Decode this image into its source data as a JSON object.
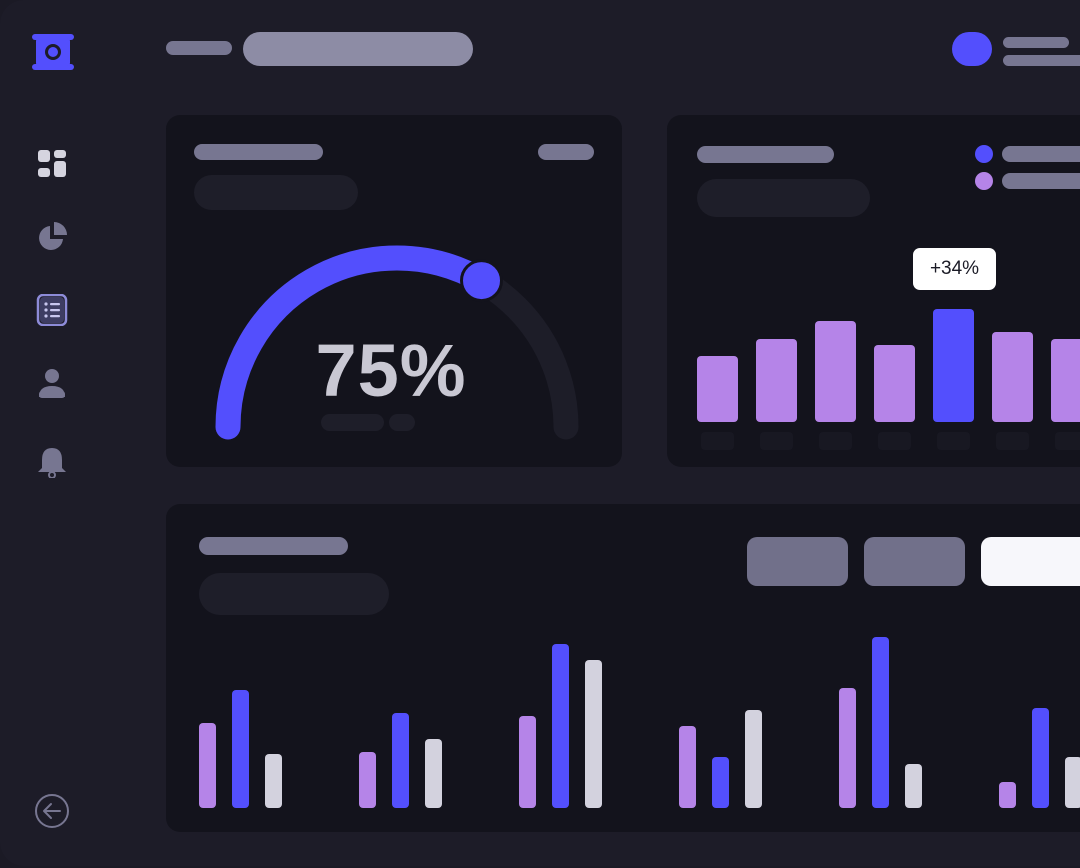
{
  "gauge": {
    "value_label": "75%",
    "fraction": 0.75
  },
  "tooltip": {
    "label": "+34%"
  },
  "colors": {
    "accent": "#534ffd",
    "lavender": "#b584e8",
    "light": "#d3d2de",
    "panel": "#13131c",
    "background": "#1d1c28",
    "placeholder": "#777691"
  },
  "sidebar": {
    "icons": [
      "logo-icon",
      "dashboard-icon",
      "pie-chart-icon",
      "list-icon",
      "user-icon",
      "bell-icon",
      "logout-icon"
    ]
  },
  "bar_chart_top": {
    "values": [
      0.56,
      0.7,
      0.86,
      0.65,
      0.96,
      0.76,
      0.7
    ],
    "highlight_index": 4
  },
  "bar_chart_bottom": {
    "groups": [
      [
        0.52,
        0.72,
        0.33
      ],
      [
        0.34,
        0.58,
        0.42
      ],
      [
        0.56,
        1.0,
        0.9
      ],
      [
        0.5,
        0.31,
        0.6
      ],
      [
        0.73,
        1.04,
        0.27
      ],
      [
        0.16,
        0.61,
        0.31
      ]
    ]
  }
}
